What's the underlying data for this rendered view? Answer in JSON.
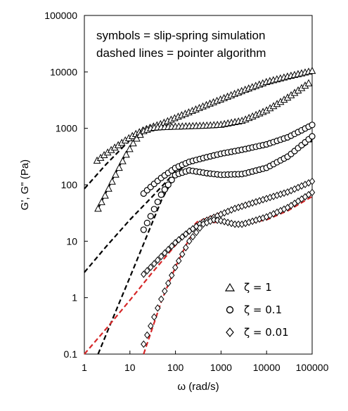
{
  "chart_data": {
    "type": "scatter",
    "xscale": "log",
    "yscale": "log",
    "xlim": [
      1,
      100000
    ],
    "ylim": [
      0.1,
      100000
    ],
    "xlabel": "ω (rad/s)",
    "ylabel": "G', G\" (Pa)",
    "x_ticks": [
      "1",
      "10",
      "100",
      "1000",
      "10000",
      "100000"
    ],
    "y_ticks": [
      "0.1",
      "1",
      "10",
      "100",
      "1000",
      "10000",
      "100000"
    ],
    "grid": false,
    "annotations": [
      "symbols = slip-spring simulation",
      "dashed lines = pointer algorithm"
    ],
    "legend": {
      "position": "bottom-right",
      "entries": [
        {
          "label": "ζ = 1",
          "marker": "triangle"
        },
        {
          "label": "ζ = 0.1",
          "marker": "circle"
        },
        {
          "label": "ζ = 0.01",
          "marker": "diamond"
        }
      ]
    },
    "symbol_series": [
      {
        "zeta": "1",
        "modulus": "G\"",
        "marker": "triangle",
        "x": [
          1.9,
          3,
          5,
          8,
          13,
          20,
          30,
          50,
          100,
          200,
          500,
          1000,
          3000,
          10000,
          30000,
          100000
        ],
        "y": [
          270,
          360,
          480,
          620,
          790,
          940,
          1060,
          1220,
          1550,
          1950,
          2650,
          3300,
          4700,
          6700,
          8400,
          10500
        ]
      },
      {
        "zeta": "1",
        "modulus": "G'",
        "marker": "triangle",
        "x": [
          2,
          3,
          5,
          8,
          13,
          20,
          30,
          50,
          100,
          200,
          500,
          1000,
          3000,
          10000,
          30000,
          100000
        ],
        "y": [
          38,
          70,
          160,
          330,
          620,
          900,
          1020,
          1060,
          1080,
          1100,
          1130,
          1170,
          1380,
          2100,
          3600,
          7000
        ]
      },
      {
        "zeta": "0.1",
        "modulus": "G\"",
        "marker": "circle",
        "x": [
          20,
          30,
          50,
          100,
          200,
          500,
          1000,
          3000,
          10000,
          30000,
          100000
        ],
        "y": [
          70,
          95,
          135,
          200,
          255,
          310,
          355,
          420,
          520,
          700,
          1150
        ]
      },
      {
        "zeta": "0.1",
        "modulus": "G'",
        "marker": "circle",
        "x": [
          20,
          30,
          50,
          100,
          200,
          500,
          1000,
          3000,
          10000,
          30000,
          100000
        ],
        "y": [
          16,
          30,
          70,
          150,
          180,
          160,
          150,
          155,
          200,
          320,
          720
        ]
      },
      {
        "zeta": "0.01",
        "modulus": "G\"",
        "marker": "diamond",
        "x": [
          20,
          30,
          50,
          100,
          200,
          400,
          1000,
          2000,
          3000,
          10000,
          30000,
          100000
        ],
        "y": [
          2.6,
          3.6,
          5.5,
          9.5,
          15,
          22,
          30,
          38,
          42,
          57,
          75,
          115
        ]
      },
      {
        "zeta": "0.01",
        "modulus": "G'",
        "marker": "diamond",
        "x": [
          20,
          30,
          50,
          100,
          200,
          400,
          700,
          1000,
          2000,
          3000,
          10000,
          30000,
          100000
        ],
        "y": [
          0.15,
          0.35,
          1.0,
          3.5,
          10,
          20,
          24,
          23,
          20,
          20,
          27,
          40,
          73
        ]
      }
    ],
    "dashed_series": [
      {
        "zeta": "1",
        "modulus": "G\"",
        "color": "#000000",
        "x": [
          1,
          3,
          10,
          30,
          100,
          300,
          1000,
          10000,
          100000
        ],
        "y": [
          85,
          230,
          620,
          980,
          1450,
          2100,
          3000,
          6000,
          10000
        ]
      },
      {
        "zeta": "1",
        "modulus": "G'",
        "color": "#000000",
        "x": [
          2,
          5,
          10,
          20,
          30,
          50,
          100,
          300,
          1000,
          3000,
          10000,
          100000
        ],
        "y": [
          38,
          170,
          470,
          850,
          980,
          1050,
          1070,
          1080,
          1120,
          1300,
          2000,
          6500
        ]
      },
      {
        "zeta": "0.1",
        "modulus": "G\"",
        "color": "#000000",
        "x": [
          1,
          3,
          10,
          30,
          100,
          300,
          1000,
          10000,
          100000
        ],
        "y": [
          2.8,
          8,
          24,
          60,
          170,
          280,
          350,
          510,
          1100
        ]
      },
      {
        "zeta": "0.1",
        "modulus": "G'",
        "color": "#000000",
        "x": [
          2,
          5,
          10,
          20,
          50,
          100,
          200,
          500,
          1000,
          3000,
          10000,
          100000
        ],
        "y": [
          0.1,
          0.6,
          2.3,
          9,
          55,
          150,
          180,
          150,
          140,
          145,
          190,
          600
        ]
      },
      {
        "zeta": "0.01",
        "modulus": "G\"",
        "color": "#d62728",
        "x": [
          1,
          3,
          10,
          30,
          100,
          300,
          1000,
          3000,
          10000,
          100000
        ],
        "y": [
          0.1,
          0.28,
          0.9,
          2.7,
          8.5,
          22,
          32,
          40,
          55,
          110
        ]
      },
      {
        "zeta": "0.01",
        "modulus": "G'",
        "color": "#d62728",
        "x": [
          20,
          50,
          100,
          200,
          400,
          1000,
          2000,
          3000,
          10000,
          30000,
          100000
        ],
        "y": [
          0.1,
          0.9,
          3.5,
          11,
          21,
          22,
          20,
          20,
          24,
          35,
          62
        ]
      }
    ]
  }
}
